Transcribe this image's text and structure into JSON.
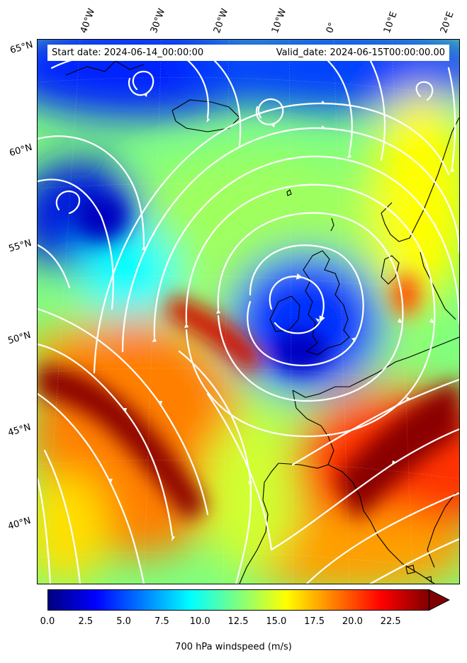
{
  "header": {
    "start_date": "Start date: 2024-06-14_00:00:00",
    "valid_date": "Valid_date: 2024-06-15T00:00:00.00"
  },
  "axes": {
    "lon_labels": [
      "40°W",
      "30°W",
      "20°W",
      "10°W",
      "0°",
      "10°E",
      "20°E"
    ],
    "lat_labels": [
      "65°N",
      "60°N",
      "55°N",
      "50°N",
      "45°N",
      "40°N"
    ]
  },
  "colorbar": {
    "label": "700 hPa windspeed (m/s)",
    "ticks": [
      "0.0",
      "2.5",
      "5.0",
      "7.5",
      "10.0",
      "12.5",
      "15.0",
      "17.5",
      "20.0",
      "22.5"
    ],
    "min": 0,
    "max": 25,
    "extend": "max",
    "colormap": [
      "#00007f",
      "#0000ff",
      "#007fff",
      "#00ffff",
      "#7fff7f",
      "#ffff00",
      "#ff7f00",
      "#ff0000",
      "#7f0000"
    ]
  },
  "map": {
    "variable": "700 hPa windspeed",
    "units": "m/s",
    "colormap_name": "jet",
    "streamline_color": "#ffffff",
    "coastline_color": "#000000"
  }
}
